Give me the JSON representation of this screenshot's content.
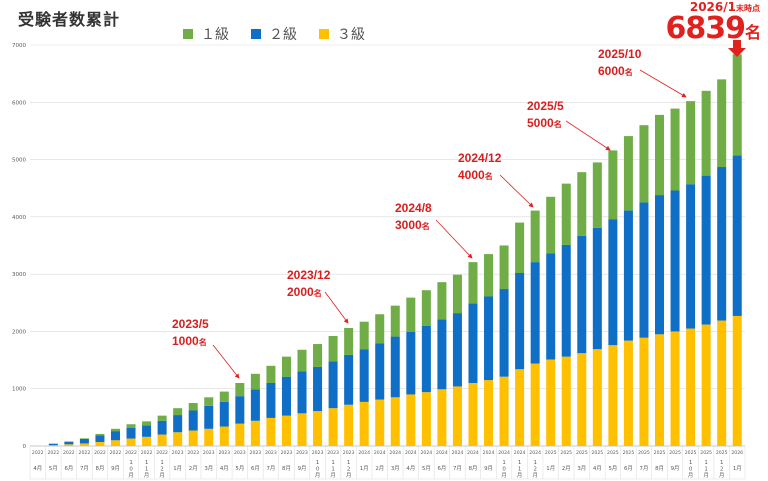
{
  "title": "受験者数累計",
  "colors": {
    "grade1": "#70ad47",
    "grade2": "#0f6fc6",
    "grade3": "#ffc000",
    "annotation": "#e0211d",
    "grid": "#d9d9d9",
    "axis": "#595959"
  },
  "legend": [
    {
      "label": "１級",
      "color": "#70ad47"
    },
    {
      "label": "２級",
      "color": "#0f6fc6"
    },
    {
      "label": "３級",
      "color": "#ffc000"
    }
  ],
  "final": {
    "date": "2026/1",
    "suffix": "末時点",
    "value": "6839",
    "unit": "名"
  },
  "annotations": [
    {
      "date": "2023/5",
      "count": "1000",
      "unit": "名"
    },
    {
      "date": "2023/12",
      "count": "2000",
      "unit": "名"
    },
    {
      "date": "2024/8",
      "count": "3000",
      "unit": "名"
    },
    {
      "date": "2024/12",
      "count": "4000",
      "unit": "名"
    },
    {
      "date": "2025/5",
      "count": "5000",
      "unit": "名"
    },
    {
      "date": "2025/10",
      "count": "6000",
      "unit": "名"
    }
  ],
  "chart_data": {
    "type": "bar",
    "stacked": true,
    "title": "受験者数累計",
    "ylim": [
      0,
      7000
    ],
    "yticks": [
      0,
      1000,
      2000,
      3000,
      4000,
      5000,
      6000,
      7000
    ],
    "grid": true,
    "categories": [
      {
        "year": "2022",
        "month": "4月"
      },
      {
        "year": "2022",
        "month": "5月"
      },
      {
        "year": "2022",
        "month": "6月"
      },
      {
        "year": "2022",
        "month": "7月"
      },
      {
        "year": "2022",
        "month": "8月"
      },
      {
        "year": "2022",
        "month": "9月"
      },
      {
        "year": "2022",
        "month": "10月"
      },
      {
        "year": "2022",
        "month": "11月"
      },
      {
        "year": "2022",
        "month": "12月"
      },
      {
        "year": "2023",
        "month": "1月"
      },
      {
        "year": "2023",
        "month": "2月"
      },
      {
        "year": "2023",
        "month": "3月"
      },
      {
        "year": "2023",
        "month": "4月"
      },
      {
        "year": "2023",
        "month": "5月"
      },
      {
        "year": "2023",
        "month": "6月"
      },
      {
        "year": "2023",
        "month": "7月"
      },
      {
        "year": "2023",
        "month": "8月"
      },
      {
        "year": "2023",
        "month": "9月"
      },
      {
        "year": "2023",
        "month": "10月"
      },
      {
        "year": "2023",
        "month": "11月"
      },
      {
        "year": "2023",
        "month": "12月"
      },
      {
        "year": "2024",
        "month": "1月"
      },
      {
        "year": "2024",
        "month": "2月"
      },
      {
        "year": "2024",
        "month": "3月"
      },
      {
        "year": "2024",
        "month": "4月"
      },
      {
        "year": "2024",
        "month": "5月"
      },
      {
        "year": "2024",
        "month": "6月"
      },
      {
        "year": "2024",
        "month": "7月"
      },
      {
        "year": "2024",
        "month": "8月"
      },
      {
        "year": "2024",
        "month": "9月"
      },
      {
        "year": "2024",
        "month": "10月"
      },
      {
        "year": "2024",
        "month": "11月"
      },
      {
        "year": "2024",
        "month": "12月"
      },
      {
        "year": "2025",
        "month": "1月"
      },
      {
        "year": "2025",
        "month": "2月"
      },
      {
        "year": "2025",
        "month": "3月"
      },
      {
        "year": "2025",
        "month": "4月"
      },
      {
        "year": "2025",
        "month": "5月"
      },
      {
        "year": "2025",
        "month": "6月"
      },
      {
        "year": "2025",
        "month": "7月"
      },
      {
        "year": "2025",
        "month": "8月"
      },
      {
        "year": "2025",
        "month": "9月"
      },
      {
        "year": "2025",
        "month": "10月"
      },
      {
        "year": "2025",
        "month": "11月"
      },
      {
        "year": "2025",
        "month": "12月"
      },
      {
        "year": "2026",
        "month": "1月"
      }
    ],
    "series": [
      {
        "name": "３級",
        "color": "#ffc000",
        "values": [
          0,
          15,
          30,
          45,
          70,
          100,
          130,
          160,
          200,
          240,
          270,
          300,
          340,
          390,
          440,
          490,
          530,
          570,
          610,
          660,
          720,
          770,
          810,
          850,
          900,
          940,
          990,
          1040,
          1100,
          1150,
          1210,
          1340,
          1440,
          1510,
          1560,
          1620,
          1690,
          1760,
          1840,
          1890,
          1950,
          2000,
          2050,
          2120,
          2190,
          2270
        ]
      },
      {
        "name": "２級",
        "color": "#0f6fc6",
        "values": [
          0,
          25,
          45,
          80,
          115,
          160,
          190,
          200,
          240,
          300,
          350,
          400,
          430,
          480,
          550,
          610,
          680,
          730,
          770,
          820,
          870,
          920,
          980,
          1060,
          1090,
          1160,
          1220,
          1280,
          1390,
          1460,
          1530,
          1680,
          1770,
          1850,
          1950,
          2050,
          2120,
          2200,
          2270,
          2360,
          2430,
          2460,
          2520,
          2600,
          2680,
          2800
        ]
      },
      {
        "name": "１級",
        "color": "#70ad47",
        "values": [
          0,
          0,
          5,
          10,
          25,
          40,
          60,
          70,
          90,
          120,
          130,
          150,
          180,
          230,
          270,
          300,
          350,
          380,
          400,
          440,
          470,
          480,
          510,
          540,
          600,
          620,
          650,
          670,
          720,
          740,
          760,
          880,
          900,
          990,
          1070,
          1110,
          1140,
          1200,
          1300,
          1350,
          1400,
          1430,
          1450,
          1480,
          1530,
          1769
        ]
      }
    ]
  }
}
